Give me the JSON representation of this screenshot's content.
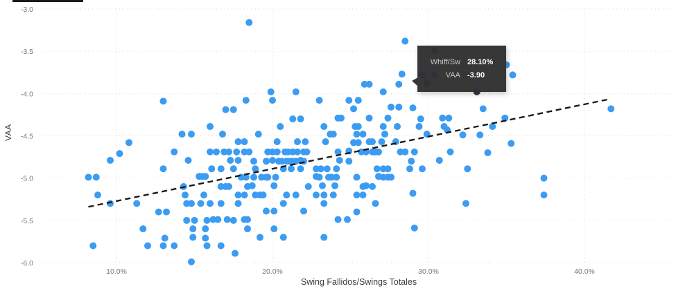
{
  "page": {
    "background": "#ffffff",
    "top_left_rule_color": "#191919"
  },
  "tooltip": {
    "background": "#373737",
    "label_color": "#c8c8c8",
    "value_color": "#ffffff",
    "rows": [
      {
        "label": "Whiff/Sw",
        "value": "28.10%"
      },
      {
        "label": "VAA",
        "value": "-3.90"
      }
    ]
  },
  "chart_data": {
    "type": "scatter",
    "title": "",
    "xlabel": "Swing Fallidos/Swings Totales",
    "ylabel": "VAA",
    "x_ticks": [
      "10.0%",
      "20.0%",
      "30.0%",
      "40.0%"
    ],
    "x_tick_values": [
      10,
      20,
      30,
      40
    ],
    "y_ticks": [
      "-3.0",
      "-3.5",
      "-4.0",
      "-4.5",
      "-5.0",
      "-5.5",
      "-6.0"
    ],
    "y_tick_values": [
      -3.0,
      -3.5,
      -4.0,
      -4.5,
      -5.0,
      -5.5,
      -6.0
    ],
    "xlim": [
      5.2,
      45.9
    ],
    "ylim": [
      -6.35,
      -2.89
    ],
    "grid": "dotted",
    "grid_color": "#d6d6d6",
    "tick_color": "#777777",
    "point_color": "#3B9CF2",
    "dimmed_point_color": "#2C323A",
    "trendline": {
      "x1": 8.2,
      "y1": -5.34,
      "x2": 41.5,
      "y2": -4.07,
      "style": "dashed",
      "color": "#1a1a1a"
    },
    "hovered_point": {
      "x": 28.1,
      "y": -3.9
    },
    "points": [
      [
        18.5,
        -3.16
      ],
      [
        13.0,
        -4.09
      ],
      [
        18.3,
        -4.08
      ],
      [
        17.0,
        -4.19
      ],
      [
        17.5,
        -4.19
      ],
      [
        16.0,
        -4.39
      ],
      [
        28.5,
        -3.38
      ],
      [
        28.3,
        -3.77
      ],
      [
        25.9,
        -3.89
      ],
      [
        26.2,
        -3.89
      ],
      [
        28.1,
        -3.89
      ],
      [
        19.9,
        -3.98
      ],
      [
        21.5,
        -3.98
      ],
      [
        27.1,
        -3.98
      ],
      [
        20.0,
        -4.08
      ],
      [
        23.0,
        -4.08
      ],
      [
        24.9,
        -4.08
      ],
      [
        25.5,
        -4.08
      ],
      [
        25.2,
        -4.18
      ],
      [
        27.6,
        -4.16
      ],
      [
        28.1,
        -4.16
      ],
      [
        29.0,
        -4.17
      ],
      [
        21.3,
        -4.3
      ],
      [
        21.8,
        -4.3
      ],
      [
        24.2,
        -4.29
      ],
      [
        24.4,
        -4.29
      ],
      [
        26.2,
        -4.29
      ],
      [
        27.4,
        -4.29
      ],
      [
        29.5,
        -4.3
      ],
      [
        30.9,
        -4.29
      ],
      [
        31.3,
        -4.29
      ],
      [
        20.5,
        -4.39
      ],
      [
        23.3,
        -4.39
      ],
      [
        25.3,
        -4.39
      ],
      [
        25.5,
        -4.39
      ],
      [
        27.1,
        -4.39
      ],
      [
        28.0,
        -4.39
      ],
      [
        29.4,
        -4.39
      ],
      [
        31.0,
        -4.39
      ],
      [
        31.2,
        -4.43
      ],
      [
        35.0,
        -3.66
      ],
      [
        35.4,
        -3.78
      ],
      [
        33.5,
        -4.18
      ],
      [
        34.9,
        -4.29
      ],
      [
        34.1,
        -4.39
      ],
      [
        41.7,
        -4.18
      ],
      [
        32.2,
        -4.49
      ],
      [
        33.3,
        -4.49
      ],
      [
        35.3,
        -4.59
      ],
      [
        33.8,
        -4.7
      ],
      [
        32.5,
        -4.89
      ],
      [
        37.4,
        -5.0
      ],
      [
        37.4,
        -5.2
      ],
      [
        32.4,
        -5.3
      ],
      [
        14.2,
        -4.48
      ],
      [
        14.8,
        -4.48
      ],
      [
        16.8,
        -4.48
      ],
      [
        17.8,
        -4.57
      ],
      [
        18.2,
        -4.57
      ],
      [
        10.8,
        -4.58
      ],
      [
        10.2,
        -4.71
      ],
      [
        13.7,
        -4.69
      ],
      [
        16.0,
        -4.69
      ],
      [
        16.4,
        -4.69
      ],
      [
        16.9,
        -4.69
      ],
      [
        17.2,
        -4.69
      ],
      [
        17.7,
        -4.69
      ],
      [
        18.2,
        -4.69
      ],
      [
        18.5,
        -4.69
      ],
      [
        9.6,
        -4.79
      ],
      [
        14.6,
        -4.79
      ],
      [
        17.3,
        -4.79
      ],
      [
        17.8,
        -4.79
      ],
      [
        13.0,
        -4.89
      ],
      [
        16.1,
        -4.89
      ],
      [
        16.7,
        -4.89
      ],
      [
        17.5,
        -4.89
      ],
      [
        8.2,
        -4.99
      ],
      [
        8.7,
        -4.99
      ],
      [
        15.3,
        -4.98
      ],
      [
        15.5,
        -4.98
      ],
      [
        15.7,
        -4.98
      ],
      [
        18.0,
        -4.99
      ],
      [
        18.3,
        -4.99
      ],
      [
        14.3,
        -5.1
      ],
      [
        16.7,
        -5.1
      ],
      [
        17.0,
        -5.1
      ],
      [
        17.2,
        -5.1
      ],
      [
        18.4,
        -5.1
      ],
      [
        8.8,
        -5.2
      ],
      [
        14.4,
        -5.2
      ],
      [
        15.6,
        -5.2
      ],
      [
        17.8,
        -5.2
      ],
      [
        18.2,
        -5.2
      ],
      [
        9.6,
        -5.3
      ],
      [
        11.3,
        -5.3
      ],
      [
        14.5,
        -5.3
      ],
      [
        14.8,
        -5.3
      ],
      [
        15.4,
        -5.3
      ],
      [
        16.0,
        -5.3
      ],
      [
        16.7,
        -5.3
      ],
      [
        17.8,
        -5.3
      ],
      [
        12.7,
        -5.4
      ],
      [
        13.2,
        -5.4
      ],
      [
        14.5,
        -5.5
      ],
      [
        15.0,
        -5.5
      ],
      [
        15.8,
        -5.5
      ],
      [
        16.2,
        -5.49
      ],
      [
        16.5,
        -5.49
      ],
      [
        17.1,
        -5.49
      ],
      [
        17.5,
        -5.5
      ],
      [
        18.2,
        -5.49
      ],
      [
        18.4,
        -5.49
      ],
      [
        11.7,
        -5.6
      ],
      [
        14.9,
        -5.6
      ],
      [
        15.7,
        -5.6
      ],
      [
        18.4,
        -5.6
      ],
      [
        13.1,
        -5.71
      ],
      [
        14.9,
        -5.7
      ],
      [
        15.7,
        -5.71
      ],
      [
        8.5,
        -5.8
      ],
      [
        12.0,
        -5.8
      ],
      [
        13.0,
        -5.8
      ],
      [
        13.7,
        -5.8
      ],
      [
        15.8,
        -5.8
      ],
      [
        16.7,
        -5.8
      ],
      [
        17.6,
        -5.89
      ],
      [
        14.8,
        -5.99
      ],
      [
        19.1,
        -4.48
      ],
      [
        23.7,
        -4.48
      ],
      [
        23.9,
        -4.48
      ],
      [
        25.4,
        -4.48
      ],
      [
        25.8,
        -4.48
      ],
      [
        27.2,
        -4.48
      ],
      [
        29.9,
        -4.48
      ],
      [
        20.3,
        -4.57
      ],
      [
        21.6,
        -4.57
      ],
      [
        22.1,
        -4.57
      ],
      [
        23.4,
        -4.57
      ],
      [
        25.2,
        -4.58
      ],
      [
        25.5,
        -4.58
      ],
      [
        26.2,
        -4.57
      ],
      [
        26.4,
        -4.57
      ],
      [
        27.0,
        -4.57
      ],
      [
        27.9,
        -4.57
      ],
      [
        19.7,
        -4.69
      ],
      [
        20.0,
        -4.69
      ],
      [
        20.3,
        -4.69
      ],
      [
        20.8,
        -4.69
      ],
      [
        21.0,
        -4.69
      ],
      [
        21.3,
        -4.69
      ],
      [
        21.6,
        -4.69
      ],
      [
        22.0,
        -4.69
      ],
      [
        22.2,
        -4.69
      ],
      [
        24.2,
        -4.69
      ],
      [
        24.9,
        -4.68
      ],
      [
        25.7,
        -4.69
      ],
      [
        26.0,
        -4.69
      ],
      [
        26.4,
        -4.69
      ],
      [
        26.6,
        -4.69
      ],
      [
        26.8,
        -4.69
      ],
      [
        28.2,
        -4.69
      ],
      [
        28.5,
        -4.69
      ],
      [
        29.1,
        -4.69
      ],
      [
        31.4,
        -4.69
      ],
      [
        18.8,
        -4.8
      ],
      [
        19.6,
        -4.8
      ],
      [
        20.0,
        -4.79
      ],
      [
        20.4,
        -4.8
      ],
      [
        20.6,
        -4.8
      ],
      [
        20.9,
        -4.8
      ],
      [
        21.1,
        -4.8
      ],
      [
        21.3,
        -4.8
      ],
      [
        21.5,
        -4.8
      ],
      [
        21.8,
        -4.79
      ],
      [
        22.0,
        -4.8
      ],
      [
        24.3,
        -4.79
      ],
      [
        24.9,
        -4.8
      ],
      [
        28.9,
        -4.8
      ],
      [
        30.7,
        -4.79
      ],
      [
        18.9,
        -4.89
      ],
      [
        20.7,
        -4.89
      ],
      [
        21.2,
        -4.89
      ],
      [
        21.8,
        -4.89
      ],
      [
        22.8,
        -4.89
      ],
      [
        23.1,
        -4.89
      ],
      [
        23.5,
        -4.89
      ],
      [
        24.1,
        -4.89
      ],
      [
        26.7,
        -4.89
      ],
      [
        27.1,
        -4.89
      ],
      [
        27.4,
        -4.89
      ],
      [
        28.8,
        -4.89
      ],
      [
        29.6,
        -4.89
      ],
      [
        18.8,
        -4.99
      ],
      [
        19.3,
        -4.99
      ],
      [
        19.6,
        -4.99
      ],
      [
        19.7,
        -4.99
      ],
      [
        20.2,
        -4.99
      ],
      [
        22.8,
        -4.98
      ],
      [
        23.0,
        -4.99
      ],
      [
        23.6,
        -4.99
      ],
      [
        23.8,
        -4.99
      ],
      [
        24.1,
        -4.99
      ],
      [
        25.4,
        -4.99
      ],
      [
        26.8,
        -4.98
      ],
      [
        27.1,
        -4.99
      ],
      [
        27.4,
        -4.99
      ],
      [
        27.6,
        -4.99
      ],
      [
        18.7,
        -5.09
      ],
      [
        20.1,
        -5.09
      ],
      [
        22.3,
        -5.1
      ],
      [
        23.2,
        -5.09
      ],
      [
        24.0,
        -5.09
      ],
      [
        25.8,
        -5.1
      ],
      [
        26.0,
        -5.09
      ],
      [
        26.4,
        -5.1
      ],
      [
        18.9,
        -5.2
      ],
      [
        19.2,
        -5.2
      ],
      [
        19.4,
        -5.2
      ],
      [
        20.9,
        -5.2
      ],
      [
        21.5,
        -5.2
      ],
      [
        22.8,
        -5.2
      ],
      [
        23.3,
        -5.2
      ],
      [
        23.9,
        -5.2
      ],
      [
        25.4,
        -5.2
      ],
      [
        25.8,
        -5.2
      ],
      [
        29.0,
        -5.18
      ],
      [
        20.7,
        -5.3
      ],
      [
        23.3,
        -5.3
      ],
      [
        26.6,
        -5.3
      ],
      [
        19.6,
        -5.39
      ],
      [
        20.1,
        -5.39
      ],
      [
        22.0,
        -5.39
      ],
      [
        25.4,
        -5.4
      ],
      [
        24.2,
        -5.49
      ],
      [
        24.8,
        -5.49
      ],
      [
        20.1,
        -5.6
      ],
      [
        29.1,
        -5.59
      ],
      [
        19.2,
        -5.7
      ],
      [
        20.7,
        -5.7
      ],
      [
        23.3,
        -5.7
      ]
    ],
    "dimmed_points": [
      [
        30.4,
        -3.49
      ],
      [
        29.6,
        -3.78
      ],
      [
        30.4,
        -3.78
      ],
      [
        29.9,
        -3.88
      ],
      [
        33.1,
        -3.98
      ]
    ]
  }
}
